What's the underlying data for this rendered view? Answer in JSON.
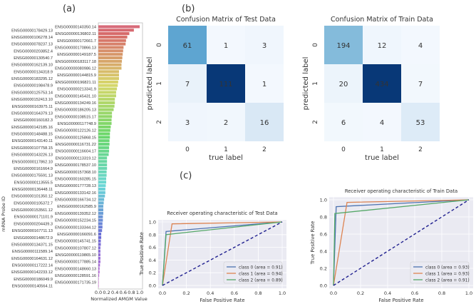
{
  "panel_labels": {
    "a": "(a)",
    "b": "(b)",
    "c": "(c)"
  },
  "chart_data": [
    {
      "type": "bar",
      "orientation": "horizontal",
      "xlabel": "Normalized AMGM Value",
      "ylabel": "mRNA Probe ID",
      "xlim": [
        0,
        1.05
      ],
      "xticks": [
        "0.0",
        "0.2",
        "0.4",
        "0.6",
        "0.8",
        "1.0"
      ],
      "categories": [
        "ENSG00000140350.14",
        "ENSG00000178429.13",
        "ENSG00000136802.11",
        "ENSG00000106278.14",
        "ENSG00000172661.7",
        "ENSG00000078237.13",
        "ENSG00000170866.13",
        "ENSG00000203852.4",
        "ENSG00000149187.5",
        "ENSG00000130540.7",
        "ENSG00000183117.18",
        "ENSG00000162139.10",
        "ENSG00000080986.12",
        "ENSG00000134318.9",
        "ENSG00000144815.9",
        "ENSG00000183295.12",
        "ENSG00000196821.11",
        "ENSG00000198478.9",
        "ENSG00000213341.9",
        "ENSG00000125753.14",
        "ENSG00000145431.10",
        "ENSG00000152413.10",
        "ENSG00000134249.16",
        "ENSG00000163975.11",
        "ENSG00000186205.13",
        "ENSG00000164379.13",
        "ENSG00000108515.17",
        "ENSG00000160182.3",
        "ENSG00000117748.9",
        "ENSG00000142185.16",
        "ENSG00000122126.12",
        "ENSG00000148488.15",
        "ENSG00000125868.15",
        "ENSG00000143140.11",
        "ENSG00000116731.22",
        "ENSG00000107758.15",
        "ENSG00000116604.17",
        "ENSG00000143226.13",
        "ENSG00000113319.12",
        "ENSG00000117862.10",
        "ENSG00000178537.10",
        "ENSG00000161664.9",
        "ENSG00000157368.10",
        "ENSG00000175591.13",
        "ENSG00000160285.15",
        "ENSG00000113555.5",
        "ENSG00000177728.13",
        "ENSG00000136448.11",
        "ENSG00000133142.16",
        "ENSG00000101350.12",
        "ENSG00000166734.12",
        "ENSG00000105372.7",
        "ENSG00000162585.9",
        "ENSG00000153561.12",
        "ENSG00000139352.12",
        "ENSG00000171101.9",
        "ENSG00000152234.15",
        "ENSG00000204439.3",
        "ENSG00000133344.12",
        "ENSG00000167711.13",
        "ENSG00000166091.6",
        "ENSG00000148672.9",
        "ENSG00000145741.15",
        "ENSG00000134371.15",
        "ENSG00000107807.12",
        "ENSG00000111589.14",
        "ENSG00000119865.10",
        "ENSG00000164631.12",
        "ENSG00000177885.14",
        "ENSG00000117222.14",
        "ENSG00000148660.13",
        "ENSG00000142233.12",
        "ENSG00000128591.16",
        "ENSG00000186049.9",
        "ENSG00000171735.19",
        "ENSG00000140564.11"
      ],
      "values": [
        1.0,
        0.86,
        0.75,
        0.7,
        0.67,
        0.66,
        0.61,
        0.6,
        0.59,
        0.58,
        0.57,
        0.56,
        0.56,
        0.5,
        0.5,
        0.5,
        0.48,
        0.47,
        0.45,
        0.43,
        0.43,
        0.4,
        0.4,
        0.39,
        0.37,
        0.33,
        0.33,
        0.32,
        0.32,
        0.3,
        0.29,
        0.28,
        0.28,
        0.27,
        0.27,
        0.26,
        0.26,
        0.25,
        0.21,
        0.21,
        0.21,
        0.21,
        0.2,
        0.2,
        0.19,
        0.19,
        0.18,
        0.17,
        0.17,
        0.16,
        0.14,
        0.13,
        0.12,
        0.12,
        0.12,
        0.11,
        0.11,
        0.1,
        0.1,
        0.09,
        0.07,
        0.07,
        0.06,
        0.06,
        0.05,
        0.05,
        0.05,
        0.05,
        0.05,
        0.04,
        0.03,
        0.03,
        0.02,
        0.01,
        0.01,
        0.01
      ]
    },
    {
      "type": "heatmap",
      "title": "Confusion Matrix of Test Data",
      "xlabel": "true label",
      "ylabel": "predicted label",
      "xticks": [
        "0",
        "1",
        "2"
      ],
      "yticks": [
        "0",
        "1",
        "2"
      ],
      "colormap": "Blues",
      "matrix": [
        [
          61,
          1,
          3
        ],
        [
          7,
          111,
          1
        ],
        [
          3,
          2,
          16
        ]
      ]
    },
    {
      "type": "heatmap",
      "title": "Confusion Matrix of Train Data",
      "xlabel": "true label",
      "ylabel": "predicted label",
      "xticks": [
        "0",
        "1",
        "2"
      ],
      "yticks": [
        "0",
        "1",
        "2"
      ],
      "colormap": "Blues",
      "matrix": [
        [
          194,
          12,
          4
        ],
        [
          20,
          434,
          7
        ],
        [
          6,
          4,
          53
        ]
      ]
    },
    {
      "type": "line",
      "title": "Receiver operating characteristic of Test Data",
      "xlabel": "False Positive Rate",
      "ylabel": "True Positive Rate",
      "xlim": [
        0,
        1
      ],
      "ylim": [
        0,
        1.03
      ],
      "xticks": [
        "0.0",
        "0.2",
        "0.4",
        "0.6",
        "0.8",
        "1.0"
      ],
      "yticks": [
        "0.0",
        "0.2",
        "0.4",
        "0.6",
        "0.8",
        "1.0"
      ],
      "grid": true,
      "legend": "lower-right",
      "series": [
        {
          "name": "class 0 (area = 0.91)",
          "color": "#4c72b0",
          "x": [
            0,
            0.03,
            1
          ],
          "y": [
            0,
            0.85,
            1
          ]
        },
        {
          "name": "class 1 (area = 0.94)",
          "color": "#dd8452",
          "x": [
            0,
            0.08,
            1
          ],
          "y": [
            0,
            0.97,
            1
          ]
        },
        {
          "name": "class 2 (area = 0.89)",
          "color": "#55a868",
          "x": [
            0,
            0.03,
            1
          ],
          "y": [
            0,
            0.8,
            1
          ]
        }
      ],
      "diagonal": {
        "color": "#1f1f8f",
        "style": "dashed"
      }
    },
    {
      "type": "line",
      "title": "Receiver operating characteristic of Train Data",
      "xlabel": "False Positive Rate",
      "ylabel": "True Positive Rate",
      "xlim": [
        0,
        1
      ],
      "ylim": [
        0,
        1.03
      ],
      "xticks": [
        "0.0",
        "0.2",
        "0.4",
        "0.6",
        "0.8",
        "1.0"
      ],
      "yticks": [
        "0.0",
        "0.2",
        "0.4",
        "0.6",
        "0.8",
        "1.0"
      ],
      "grid": true,
      "legend": "lower-right",
      "series": [
        {
          "name": "class 0 (area = 0.93)",
          "color": "#4c72b0",
          "x": [
            0,
            0.02,
            1
          ],
          "y": [
            0,
            0.92,
            1
          ]
        },
        {
          "name": "class 1 (area = 0.93)",
          "color": "#dd8452",
          "x": [
            0,
            0.1,
            1
          ],
          "y": [
            0,
            0.97,
            1
          ]
        },
        {
          "name": "class 2 (area = 0.91)",
          "color": "#55a868",
          "x": [
            0,
            0.01,
            1
          ],
          "y": [
            0,
            0.84,
            1
          ]
        }
      ],
      "diagonal": {
        "color": "#1f1f8f",
        "style": "dashed"
      }
    }
  ]
}
